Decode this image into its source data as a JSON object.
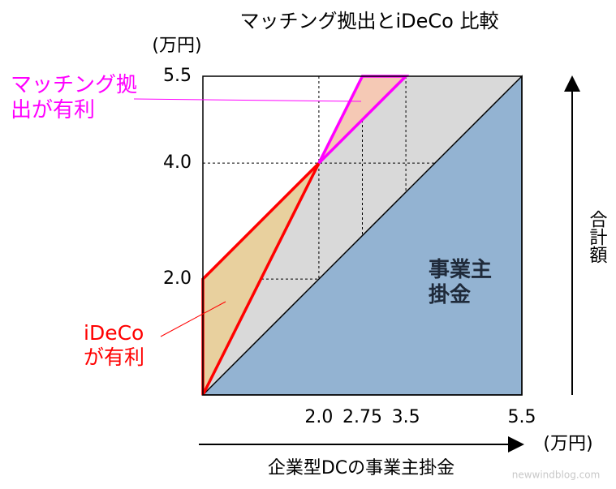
{
  "chart_data": {
    "type": "region",
    "title": "マッチング拠出とiDeCo 比較",
    "y_unit": "(万円)",
    "x_unit": "(万円)",
    "x_label": "企業型DCの事業主掛金",
    "y_label": "合計額",
    "watermark": "newwindblog.com",
    "xlim": [
      0,
      5.5
    ],
    "ylim": [
      0,
      5.5
    ],
    "xticks": [
      {
        "value": 2,
        "label": "2.0"
      },
      2.75,
      3.5,
      5.5
    ],
    "yticks": [
      {
        "value": 2,
        "label": "2.0"
      },
      {
        "value": 4,
        "label": "4.0"
      },
      5.5
    ],
    "grid": true,
    "series": [
      {
        "color": "#d9d9d9",
        "x": [
          0,
          2,
          2.75,
          5.5
        ],
        "y": [
          0,
          4,
          5.5,
          5.5
        ]
      },
      {
        "name": "事業主掛金",
        "color": "#93b3d2",
        "stroke": "#000000",
        "x": [
          0,
          5.5,
          5.5
        ],
        "y": [
          0,
          0,
          5.5
        ]
      },
      {
        "name": "iDeCoが有利",
        "color": "#e8d09e",
        "stroke": "#ff0000",
        "x": [
          0,
          0,
          2
        ],
        "y": [
          0,
          2,
          4
        ]
      },
      {
        "name": "マッチング拠出が有利",
        "color": "#f5c9b5",
        "stroke": "#ff00ff",
        "x": [
          2,
          2.75,
          3.5
        ],
        "y": [
          4,
          5.5,
          5.5
        ]
      }
    ]
  }
}
